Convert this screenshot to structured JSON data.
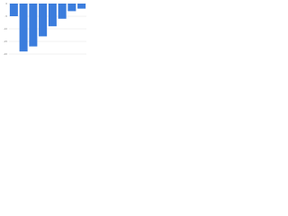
{
  "chart_data": {
    "type": "bar",
    "categories": [
      null,
      null,
      null,
      null,
      null,
      null,
      null,
      null
    ],
    "values": [
      -5,
      -19,
      -17,
      -13,
      -9,
      -6,
      -3,
      -2
    ],
    "color": "#3b7ddd",
    "ylim": [
      -20,
      0
    ],
    "yticks": [
      -20,
      -15,
      -10,
      -5,
      0
    ],
    "grid": true
  }
}
